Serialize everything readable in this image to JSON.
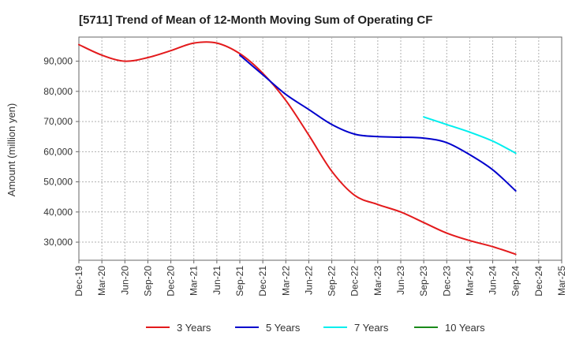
{
  "chart_data": {
    "type": "line",
    "title": "[5711]  Trend of Mean of 12-Month Moving Sum of Operating CF",
    "xlabel": "",
    "ylabel": "Amount (million yen)",
    "ylim": [
      24000,
      98000
    ],
    "yticks": [
      30000,
      40000,
      50000,
      60000,
      70000,
      80000,
      90000
    ],
    "ytick_labels": [
      "30,000",
      "40,000",
      "50,000",
      "60,000",
      "70,000",
      "80,000",
      "90,000"
    ],
    "grid": true,
    "legend_position": "bottom",
    "categories": [
      "Dec-19",
      "Mar-20",
      "Jun-20",
      "Sep-20",
      "Dec-20",
      "Mar-21",
      "Jun-21",
      "Sep-21",
      "Dec-21",
      "Mar-22",
      "Jun-22",
      "Sep-22",
      "Dec-22",
      "Mar-23",
      "Jun-23",
      "Sep-23",
      "Dec-23",
      "Mar-24",
      "Jun-24",
      "Sep-24",
      "Dec-24",
      "Mar-25"
    ],
    "series": [
      {
        "name": "3 Years",
        "color": "#e31a1c",
        "values": [
          95500,
          92000,
          90000,
          91200,
          93500,
          96000,
          96000,
          92500,
          86000,
          77000,
          65500,
          53500,
          45500,
          42500,
          40000,
          36500,
          33000,
          30500,
          28500,
          26000,
          null,
          null
        ]
      },
      {
        "name": "5 Years",
        "color": "#0000cc",
        "values": [
          null,
          null,
          null,
          null,
          null,
          null,
          null,
          92000,
          85500,
          79000,
          74000,
          69000,
          65800,
          65000,
          64800,
          64500,
          63000,
          59000,
          54000,
          47000,
          null,
          null
        ]
      },
      {
        "name": "7 Years",
        "color": "#00eeee",
        "values": [
          null,
          null,
          null,
          null,
          null,
          null,
          null,
          null,
          null,
          null,
          null,
          null,
          null,
          null,
          null,
          71500,
          69000,
          66500,
          63500,
          59500,
          null,
          null
        ]
      },
      {
        "name": "10 Years",
        "color": "#1a8a1a",
        "values": [
          null,
          null,
          null,
          null,
          null,
          null,
          null,
          null,
          null,
          null,
          null,
          null,
          null,
          null,
          null,
          null,
          null,
          null,
          null,
          null,
          null,
          null
        ]
      }
    ]
  }
}
